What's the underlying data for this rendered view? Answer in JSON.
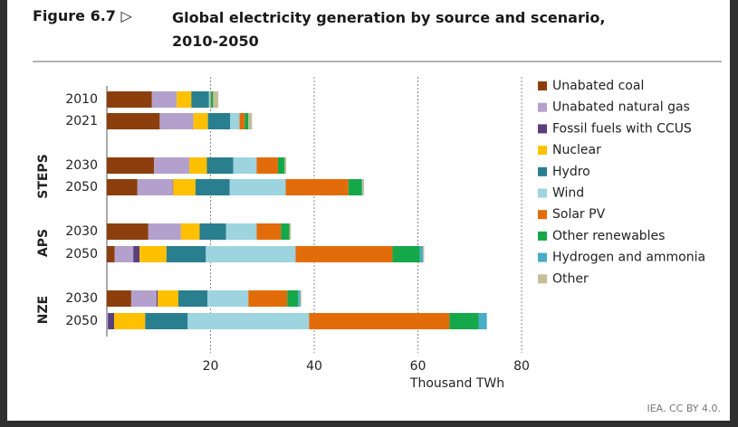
{
  "chart_data": {
    "type": "stacked_bar_horizontal",
    "figure_label": "Figure 6.7 ▷",
    "title": "Global electricity generation by source and scenario, 2010-2050",
    "categories": [
      "2010",
      "2021",
      "2030",
      "2050",
      "2030",
      "2050",
      "2030",
      "2050"
    ],
    "group_labels": [
      "STEPS",
      "APS",
      "NZE"
    ],
    "xlabel": "Thousand TWh",
    "xlim": [
      0,
      80
    ],
    "xticks": [
      20,
      40,
      60,
      80
    ],
    "grid": true,
    "legend_position": "right",
    "source": "IEA. CC BY 4.0.",
    "series": [
      {
        "name": "Unabated coal",
        "color": "#8c3f0c",
        "values": [
          8.7,
          10.2,
          9.1,
          5.9,
          8.0,
          1.5,
          4.7,
          0
        ]
      },
      {
        "name": "Unabated natural gas",
        "color": "#b4a0cc",
        "values": [
          4.8,
          6.5,
          6.8,
          6.8,
          6.3,
          3.6,
          4.9,
          0.2
        ]
      },
      {
        "name": "Fossil fuels with CCUS",
        "color": "#5a3f7d",
        "values": [
          0,
          0,
          0,
          0.1,
          0,
          1.2,
          0.2,
          1.2
        ]
      },
      {
        "name": "Nuclear",
        "color": "#ffc000",
        "values": [
          2.8,
          2.8,
          3.4,
          4.3,
          3.6,
          5.2,
          4.0,
          6.0
        ]
      },
      {
        "name": "Hydro",
        "color": "#2a7f8e",
        "values": [
          3.4,
          4.3,
          5.1,
          6.6,
          5.1,
          7.6,
          5.6,
          8.2
        ]
      },
      {
        "name": "Wind",
        "color": "#9dd4e0",
        "values": [
          0.3,
          1.8,
          4.5,
          10.8,
          5.9,
          17.3,
          7.9,
          23.4
        ]
      },
      {
        "name": "Solar PV",
        "color": "#e36c0a",
        "values": [
          0.1,
          1.0,
          4.1,
          12.1,
          4.7,
          18.7,
          7.5,
          27.1
        ]
      },
      {
        "name": "Other renewables",
        "color": "#14a84b",
        "values": [
          0.4,
          0.7,
          1.3,
          2.6,
          1.6,
          5.3,
          2.1,
          5.6
        ]
      },
      {
        "name": "Hydrogen and ammonia",
        "color": "#4aacc6",
        "values": [
          0,
          0,
          0,
          0.1,
          0,
          0.6,
          0.4,
          1.6
        ]
      },
      {
        "name": "Other",
        "color": "#c4bd97",
        "values": [
          1.0,
          0.7,
          0.3,
          0.3,
          0.3,
          0.2,
          0.2,
          0
        ]
      }
    ]
  }
}
